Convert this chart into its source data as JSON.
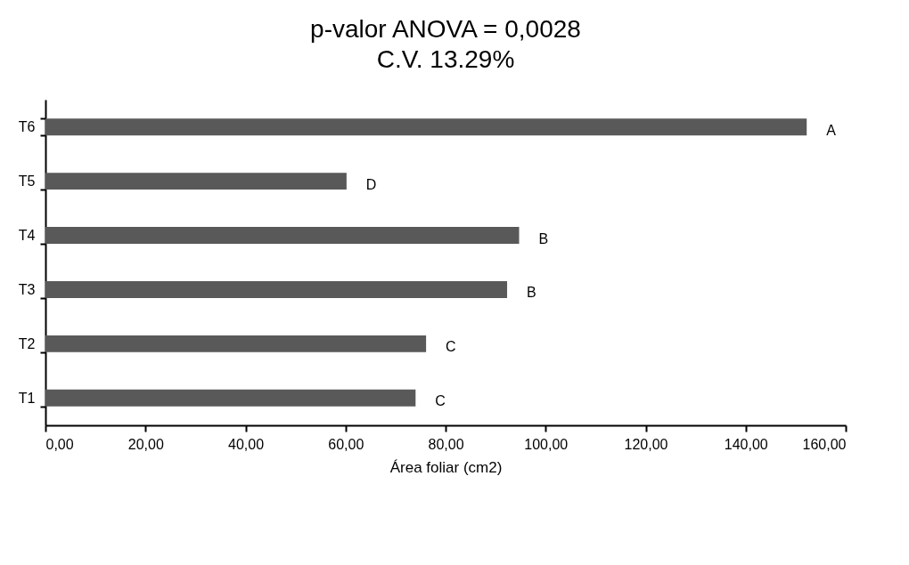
{
  "chart_data": {
    "type": "bar",
    "orientation": "horizontal",
    "title": "p-valor ANOVA = 0,0028",
    "subtitle": "C.V. 13.29%",
    "xlabel": "Área foliar (cm2)",
    "categories": [
      "T6",
      "T5",
      "T4",
      "T3",
      "T2",
      "T1"
    ],
    "values": [
      152.2,
      60.2,
      94.7,
      92.3,
      76.1,
      74.0
    ],
    "color": "#595959",
    "xlim": [
      0,
      160
    ],
    "xticks": [
      {
        "value": 0,
        "label": "0,00"
      },
      {
        "value": 20,
        "label": "20,00"
      },
      {
        "value": 40,
        "label": "40,00"
      },
      {
        "value": 60,
        "label": "60,00"
      },
      {
        "value": 80,
        "label": "80,00"
      },
      {
        "value": 100,
        "label": "100,00"
      },
      {
        "value": 120,
        "label": "120,00"
      },
      {
        "value": 140,
        "label": "140,00"
      },
      {
        "value": 160,
        "label": "160,00"
      }
    ],
    "annotations": [
      {
        "text": "A",
        "x": 152.2,
        "y": "T6"
      },
      {
        "text": "D",
        "x": 60.2,
        "y": "T5"
      },
      {
        "text": "B",
        "x": 94.7,
        "y": "T4"
      },
      {
        "text": "B",
        "x": 92.3,
        "y": "T3"
      },
      {
        "text": "C",
        "x": 76.1,
        "y": "T2"
      },
      {
        "text": "C",
        "x": 74.0,
        "y": "T1"
      }
    ],
    "grid": false
  }
}
